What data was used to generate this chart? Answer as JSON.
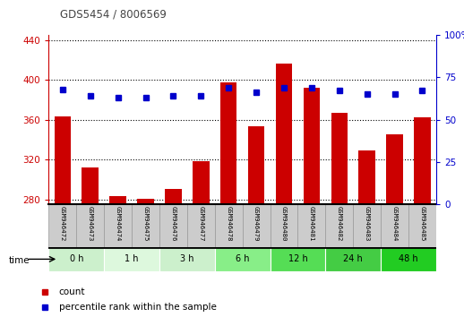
{
  "title": "GDS5454 / 8006569",
  "samples": [
    "GSM946472",
    "GSM946473",
    "GSM946474",
    "GSM946475",
    "GSM946476",
    "GSM946477",
    "GSM946478",
    "GSM946479",
    "GSM946480",
    "GSM946481",
    "GSM946482",
    "GSM946483",
    "GSM946484",
    "GSM946485"
  ],
  "counts": [
    363,
    312,
    283,
    281,
    291,
    318,
    397,
    353,
    416,
    392,
    367,
    329,
    345,
    362
  ],
  "percentile": [
    68,
    64,
    63,
    63,
    64,
    64,
    69,
    66,
    69,
    69,
    67,
    65,
    65,
    67
  ],
  "time_groups": [
    {
      "label": "0 h",
      "start": 0,
      "end": 2,
      "color": "#ccf0cc"
    },
    {
      "label": "1 h",
      "start": 2,
      "end": 4,
      "color": "#ddf8dd"
    },
    {
      "label": "3 h",
      "start": 4,
      "end": 6,
      "color": "#ccf0cc"
    },
    {
      "label": "6 h",
      "start": 6,
      "end": 8,
      "color": "#88ee88"
    },
    {
      "label": "12 h",
      "start": 8,
      "end": 10,
      "color": "#55dd55"
    },
    {
      "label": "24 h",
      "start": 10,
      "end": 12,
      "color": "#44cc44"
    },
    {
      "label": "48 h",
      "start": 12,
      "end": 14,
      "color": "#22cc22"
    }
  ],
  "bar_color": "#cc0000",
  "dot_color": "#0000cc",
  "ylim_left": [
    275,
    445
  ],
  "yticks_left": [
    280,
    320,
    360,
    400,
    440
  ],
  "ylim_right": [
    0,
    100
  ],
  "yticks_right": [
    0,
    25,
    50,
    75,
    100
  ],
  "bg_color": "#ffffff",
  "title_color": "#444444",
  "gray_box_color": "#cccccc",
  "gray_box_edge": "#999999"
}
